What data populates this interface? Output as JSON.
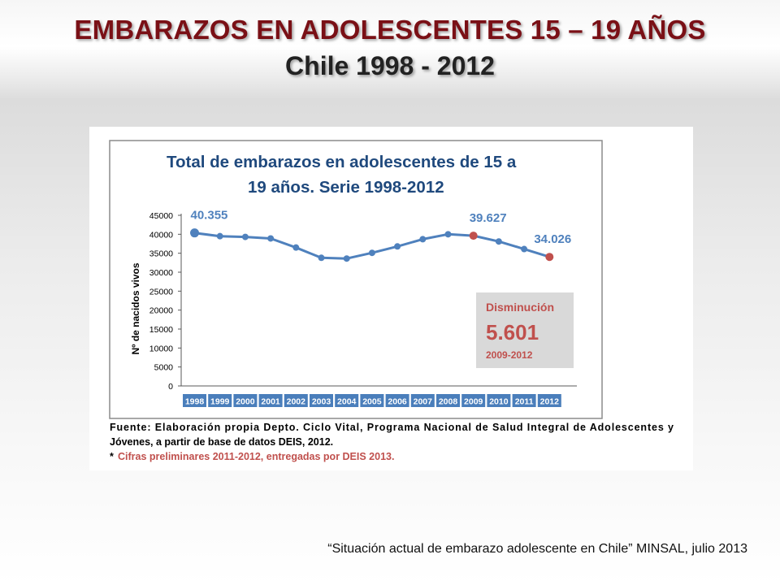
{
  "slide": {
    "title": "EMBARAZOS EN ADOLESCENTES 15 – 19 AÑOS",
    "subtitle": "Chile 1998 - 2012",
    "citation": "“Situación actual de embarazo adolescente en Chile” MINSAL, julio 2013"
  },
  "chart_data": {
    "type": "line",
    "title_line1": "Total de embarazos en adolescentes de 15 a",
    "title_line2": "19 años. Serie 1998-2012",
    "ylabel": "Nº de nacidos vivos",
    "xlabel": "",
    "ylim": [
      0,
      45000
    ],
    "yticks": [
      0,
      5000,
      10000,
      15000,
      20000,
      25000,
      30000,
      35000,
      40000,
      45000
    ],
    "categories": [
      "1998",
      "1999",
      "2000",
      "2001",
      "2002",
      "2003",
      "2004",
      "2005",
      "2006",
      "2007",
      "2008",
      "2009",
      "2010",
      "2011",
      "2012"
    ],
    "values": [
      40355,
      39500,
      39300,
      38900,
      36500,
      33800,
      33600,
      35100,
      36800,
      38700,
      40000,
      39627,
      38100,
      36100,
      34026
    ],
    "highlighted_points": [
      "2009",
      "2012"
    ],
    "data_labels": [
      {
        "category": "1998",
        "text": "40.355"
      },
      {
        "category": "2009",
        "text": "39.627"
      },
      {
        "category": "2012",
        "text": "34.026"
      }
    ],
    "colors": {
      "line": "#4f81bd",
      "highlight": "#c0504d",
      "axis_band": "#4a7ebb",
      "title": "#1f497d",
      "data_label": "#4f81bd"
    },
    "callout": {
      "label": "Disminución",
      "value": "5.601",
      "period": "2009-2012",
      "color": "#c0504d",
      "background": "#d9d9d9"
    },
    "grid": false,
    "legend": "none"
  },
  "source_note": {
    "line1": "Fuente: Elaboración propia Depto. Ciclo Vital, Programa Nacional de Salud Integral de Adolescentes y",
    "line2": "Jóvenes, a partir de base de datos DEIS, 2012.",
    "asterisk": "*",
    "preliminary": "Cifras preliminares 2011-2012, entregadas por DEIS 2013."
  }
}
